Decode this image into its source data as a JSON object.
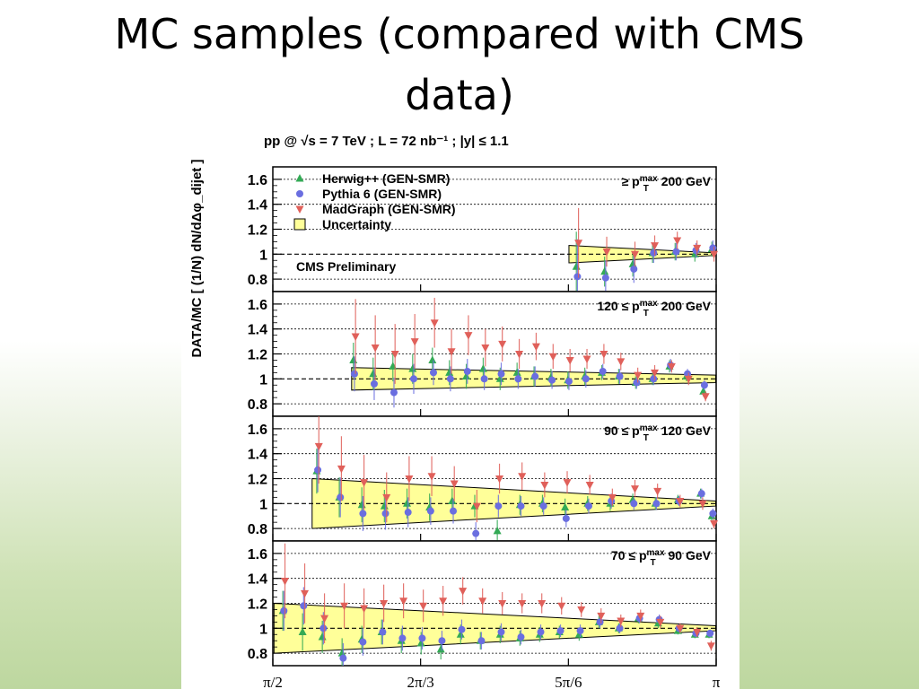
{
  "slide": {
    "title": "MC samples (compared with CMS data)"
  },
  "chart_data": {
    "type": "scatter",
    "header": "pp @ √s = 7 TeV ; L = 72 nb⁻¹ ; |y| ≤ 1.1",
    "ylabel": "DATA/MC [ (1/N) dN/dΔφ_dijet ]",
    "annotation": "CMS Preliminary",
    "xlim": [
      1.5708,
      3.1416
    ],
    "ylim": [
      0.7,
      1.7
    ],
    "yticks": [
      0.8,
      1,
      1.2,
      1.4,
      1.6
    ],
    "ytick_labels": [
      "0.8",
      "1",
      "1.2",
      "1.4",
      "1.6"
    ],
    "xticks": [
      1.5708,
      2.0944,
      2.618,
      3.1416
    ],
    "xtick_labels": [
      "π/2",
      "2π/3",
      "5π/6",
      "π"
    ],
    "grid": true,
    "legend_position": "top-left",
    "legend": [
      {
        "key": "herwig",
        "label": "Herwig++ (GEN-SMR)",
        "color": "#33aa55",
        "marker": "triangle-up"
      },
      {
        "key": "pythia",
        "label": "Pythia 6 (GEN-SMR)",
        "color": "#6a6ee0",
        "marker": "circle"
      },
      {
        "key": "madgraph",
        "label": "MadGraph (GEN-SMR)",
        "color": "#e0605a",
        "marker": "triangle-down"
      },
      {
        "key": "uncertainty",
        "label": "Uncertainty",
        "color": "#ffff99",
        "marker": "box"
      }
    ],
    "panels": [
      {
        "label": "p_T^max ≥ 200 GeV",
        "label_parts": {
          "pre": "",
          "post": " 200 GeV",
          "op": "≥"
        },
        "band": {
          "x": [
            2.62,
            3.14
          ],
          "half_width_start": 0.07,
          "half_width_end": 0.01
        },
        "x": [
          2.65,
          2.75,
          2.85,
          2.92,
          3.0,
          3.07,
          3.13
        ],
        "series": {
          "herwig": {
            "y": [
              0.9,
              0.86,
              0.92,
              1.01,
              1.02,
              1.0,
              1.04
            ],
            "err": [
              0.28,
              0.12,
              0.1,
              0.08,
              0.07,
              0.06,
              0.06
            ]
          },
          "pythia": {
            "y": [
              0.82,
              0.81,
              0.88,
              1.01,
              1.02,
              1.03,
              1.05
            ],
            "err": [
              0.3,
              0.14,
              0.11,
              0.08,
              0.07,
              0.06,
              0.06
            ]
          },
          "madgraph": {
            "y": [
              1.09,
              1.02,
              1.0,
              1.07,
              1.11,
              1.05,
              1.0
            ],
            "err": [
              0.28,
              0.12,
              0.1,
              0.08,
              0.07,
              0.06,
              0.06
            ]
          }
        }
      },
      {
        "label": "120 ≤ p_T^max ≤ 200 GeV",
        "label_parts": {
          "pre": "120 ",
          "op": "≤",
          "post": " 200 GeV"
        },
        "band": {
          "x": [
            1.85,
            3.14
          ],
          "half_width_start": 0.09,
          "half_width_end": 0.03
        },
        "x": [
          1.86,
          1.93,
          2.0,
          2.07,
          2.14,
          2.2,
          2.26,
          2.32,
          2.38,
          2.44,
          2.5,
          2.56,
          2.62,
          2.68,
          2.74,
          2.8,
          2.86,
          2.92,
          2.98,
          3.04,
          3.1
        ],
        "series": {
          "herwig": {
            "y": [
              1.15,
              1.04,
              1.1,
              1.08,
              1.15,
              1.05,
              1.02,
              1.08,
              1.0,
              1.05,
              1.02,
              1.01,
              0.99,
              1.02,
              1.05,
              1.02,
              0.97,
              1.0,
              1.1,
              1.02,
              0.9
            ],
            "err": [
              0.14,
              0.13,
              0.12,
              0.12,
              0.1,
              0.1,
              0.1,
              0.09,
              0.09,
              0.08,
              0.08,
              0.07,
              0.07,
              0.07,
              0.06,
              0.06,
              0.05,
              0.05,
              0.05,
              0.04,
              0.04
            ]
          },
          "pythia": {
            "y": [
              1.04,
              0.96,
              0.89,
              1.0,
              1.05,
              1.0,
              1.06,
              1.0,
              1.04,
              1.0,
              1.02,
              0.99,
              0.98,
              1.0,
              1.06,
              1.02,
              0.97,
              1.0,
              1.11,
              1.04,
              0.95
            ],
            "err": [
              0.14,
              0.13,
              0.12,
              0.12,
              0.1,
              0.1,
              0.1,
              0.09,
              0.09,
              0.08,
              0.08,
              0.07,
              0.07,
              0.07,
              0.06,
              0.06,
              0.05,
              0.05,
              0.05,
              0.04,
              0.04
            ]
          },
          "madgraph": {
            "y": [
              1.34,
              1.25,
              1.2,
              1.3,
              1.45,
              1.22,
              1.35,
              1.25,
              1.28,
              1.2,
              1.26,
              1.18,
              1.15,
              1.16,
              1.2,
              1.14,
              1.03,
              1.05,
              1.1,
              1.0,
              0.86
            ],
            "err": [
              0.3,
              0.26,
              0.24,
              0.22,
              0.2,
              0.18,
              0.16,
              0.15,
              0.14,
              0.12,
              0.11,
              0.1,
              0.09,
              0.08,
              0.08,
              0.07,
              0.06,
              0.06,
              0.05,
              0.05,
              0.04
            ]
          }
        }
      },
      {
        "label": "90 ≤ p_T^max ≤ 120 GeV",
        "label_parts": {
          "pre": "90 ",
          "op": "≤",
          "post": " 120 GeV"
        },
        "band": {
          "x": [
            1.71,
            3.14
          ],
          "half_width_start": 0.2,
          "half_width_end": 0.02
        },
        "x": [
          1.73,
          1.81,
          1.89,
          1.97,
          2.05,
          2.13,
          2.21,
          2.29,
          2.37,
          2.45,
          2.53,
          2.61,
          2.69,
          2.77,
          2.85,
          2.93,
          3.01,
          3.09,
          3.13
        ],
        "series": {
          "herwig": {
            "y": [
              1.26,
              1.05,
              0.99,
              0.98,
              1.0,
              0.97,
              1.02,
              0.98,
              0.78,
              0.99,
              1.0,
              0.97,
              1.0,
              1.0,
              1.03,
              1.0,
              1.03,
              1.08,
              0.9
            ],
            "err": [
              0.18,
              0.16,
              0.14,
              0.13,
              0.12,
              0.11,
              0.1,
              0.09,
              0.09,
              0.08,
              0.07,
              0.07,
              0.06,
              0.06,
              0.05,
              0.05,
              0.04,
              0.04,
              0.04
            ]
          },
          "pythia": {
            "y": [
              1.27,
              1.05,
              0.92,
              0.92,
              0.93,
              0.94,
              0.94,
              0.76,
              0.98,
              0.98,
              0.98,
              0.88,
              0.98,
              1.02,
              1.0,
              1.0,
              1.02,
              1.08,
              0.92
            ],
            "err": [
              0.18,
              0.16,
              0.14,
              0.13,
              0.12,
              0.11,
              0.1,
              0.09,
              0.09,
              0.08,
              0.07,
              0.07,
              0.06,
              0.06,
              0.05,
              0.05,
              0.04,
              0.04,
              0.04
            ]
          },
          "madgraph": {
            "y": [
              1.46,
              1.28,
              1.17,
              1.05,
              1.2,
              1.22,
              1.16,
              0.98,
              1.2,
              1.22,
              1.15,
              1.17,
              1.15,
              1.05,
              1.12,
              1.1,
              1.02,
              1.0,
              0.84
            ],
            "err": [
              0.3,
              0.26,
              0.22,
              0.2,
              0.18,
              0.16,
              0.14,
              0.13,
              0.12,
              0.11,
              0.1,
              0.09,
              0.08,
              0.07,
              0.07,
              0.06,
              0.05,
              0.05,
              0.04
            ]
          }
        }
      },
      {
        "label": "70 ≤ p_T^max ≤ 90 GeV",
        "label_parts": {
          "pre": "70 ",
          "op": "≤",
          "post": " 90 GeV"
        },
        "band": {
          "x": [
            1.575,
            3.14
          ],
          "half_width_start": 0.2,
          "half_width_end": 0.02
        },
        "x": [
          1.61,
          1.68,
          1.75,
          1.82,
          1.89,
          1.96,
          2.03,
          2.1,
          2.17,
          2.24,
          2.31,
          2.38,
          2.45,
          2.52,
          2.59,
          2.66,
          2.73,
          2.8,
          2.87,
          2.94,
          3.01,
          3.07,
          3.12
        ],
        "series": {
          "herwig": {
            "y": [
              1.14,
              0.97,
              0.93,
              0.8,
              0.91,
              0.97,
              0.9,
              0.88,
              0.83,
              0.95,
              0.9,
              0.95,
              0.92,
              0.95,
              0.97,
              0.95,
              1.05,
              1.0,
              1.08,
              1.04,
              0.98,
              0.95,
              0.95
            ],
            "err": [
              0.16,
              0.15,
              0.13,
              0.12,
              0.11,
              0.1,
              0.1,
              0.09,
              0.08,
              0.08,
              0.07,
              0.07,
              0.06,
              0.06,
              0.05,
              0.05,
              0.05,
              0.04,
              0.04,
              0.04,
              0.03,
              0.03,
              0.03
            ]
          },
          "pythia": {
            "y": [
              1.14,
              1.18,
              1.0,
              0.76,
              0.89,
              0.97,
              0.92,
              0.92,
              0.9,
              0.99,
              0.9,
              0.97,
              0.93,
              0.97,
              0.98,
              0.98,
              1.05,
              1.0,
              1.08,
              1.07,
              1.0,
              0.96,
              0.96
            ],
            "err": [
              0.16,
              0.15,
              0.13,
              0.12,
              0.11,
              0.1,
              0.1,
              0.09,
              0.08,
              0.08,
              0.07,
              0.07,
              0.06,
              0.06,
              0.05,
              0.05,
              0.05,
              0.04,
              0.04,
              0.04,
              0.03,
              0.03,
              0.03
            ]
          },
          "madgraph": {
            "y": [
              1.38,
              1.28,
              1.08,
              1.18,
              1.16,
              1.2,
              1.22,
              1.18,
              1.22,
              1.3,
              1.22,
              1.2,
              1.2,
              1.2,
              1.18,
              1.15,
              1.1,
              1.06,
              1.1,
              1.05,
              1.0,
              0.97,
              0.86
            ],
            "err": [
              0.3,
              0.24,
              0.2,
              0.18,
              0.16,
              0.15,
              0.14,
              0.13,
              0.12,
              0.11,
              0.1,
              0.09,
              0.08,
              0.08,
              0.07,
              0.06,
              0.06,
              0.05,
              0.05,
              0.05,
              0.04,
              0.04,
              0.04
            ]
          }
        }
      }
    ]
  }
}
